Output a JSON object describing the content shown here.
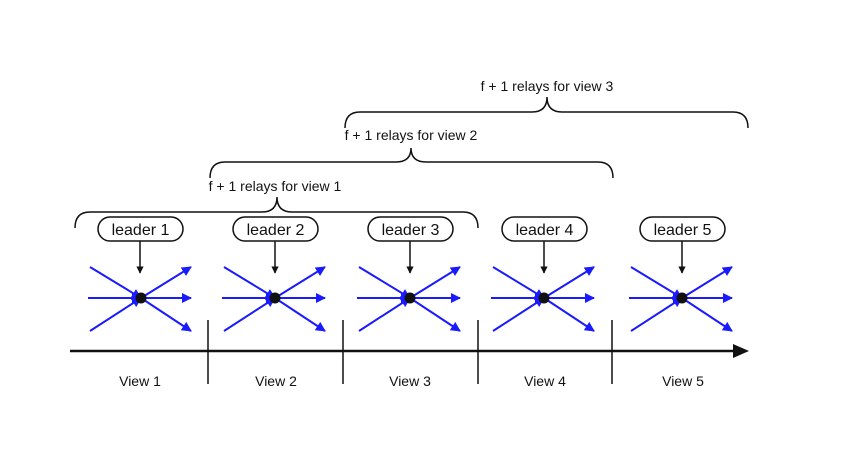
{
  "diagram": {
    "relay_labels": [
      "f + 1 relays for view 1",
      "f + 1 relays for view 2",
      "f + 1 relays for view 3"
    ],
    "leaders": [
      "leader 1",
      "leader 2",
      "leader 3",
      "leader 4",
      "leader 5"
    ],
    "views": [
      "View 1",
      "View 2",
      "View 3",
      "View 4",
      "View 5"
    ]
  },
  "colors": {
    "fan_arrow": "#1a1aff",
    "line": "#111111",
    "node": "#111111"
  }
}
